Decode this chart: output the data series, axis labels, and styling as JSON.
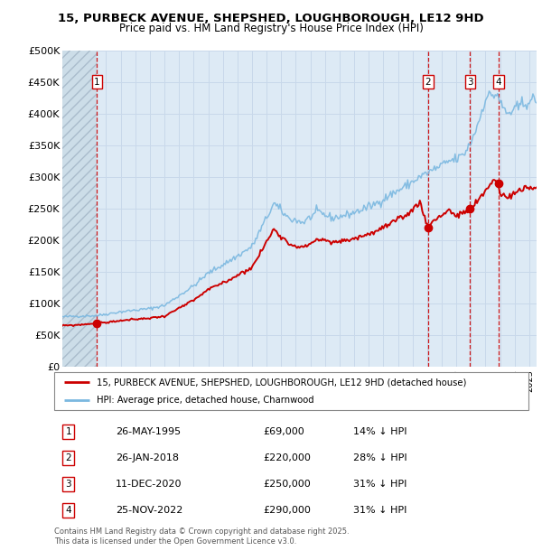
{
  "title_line1": "15, PURBECK AVENUE, SHEPSHED, LOUGHBOROUGH, LE12 9HD",
  "title_line2": "Price paid vs. HM Land Registry's House Price Index (HPI)",
  "ylim": [
    0,
    500000
  ],
  "yticks": [
    0,
    50000,
    100000,
    150000,
    200000,
    250000,
    300000,
    350000,
    400000,
    450000,
    500000
  ],
  "ytick_labels": [
    "£0",
    "£50K",
    "£100K",
    "£150K",
    "£200K",
    "£250K",
    "£300K",
    "£350K",
    "£400K",
    "£450K",
    "£500K"
  ],
  "hpi_color": "#7bb8e0",
  "price_color": "#cc0000",
  "vline_color": "#cc0000",
  "grid_color": "#c8d8ea",
  "bg_color": "#ddeaf5",
  "transactions": [
    {
      "num": 1,
      "date_num": 1995.38,
      "price": 69000,
      "date_str": "26-MAY-1995",
      "price_str": "£69,000",
      "pct": "14% ↓ HPI"
    },
    {
      "num": 2,
      "date_num": 2018.07,
      "price": 220000,
      "date_str": "26-JAN-2018",
      "price_str": "£220,000",
      "pct": "28% ↓ HPI"
    },
    {
      "num": 3,
      "date_num": 2020.95,
      "price": 250000,
      "date_str": "11-DEC-2020",
      "price_str": "£250,000",
      "pct": "31% ↓ HPI"
    },
    {
      "num": 4,
      "date_num": 2022.9,
      "price": 290000,
      "date_str": "25-NOV-2022",
      "price_str": "£290,000",
      "pct": "31% ↓ HPI"
    }
  ],
  "legend_line1": "15, PURBECK AVENUE, SHEPSHED, LOUGHBOROUGH, LE12 9HD (detached house)",
  "legend_line2": "HPI: Average price, detached house, Charnwood",
  "footer_line1": "Contains HM Land Registry data © Crown copyright and database right 2025.",
  "footer_line2": "This data is licensed under the Open Government Licence v3.0.",
  "xmin": 1993.0,
  "xmax": 2025.5
}
